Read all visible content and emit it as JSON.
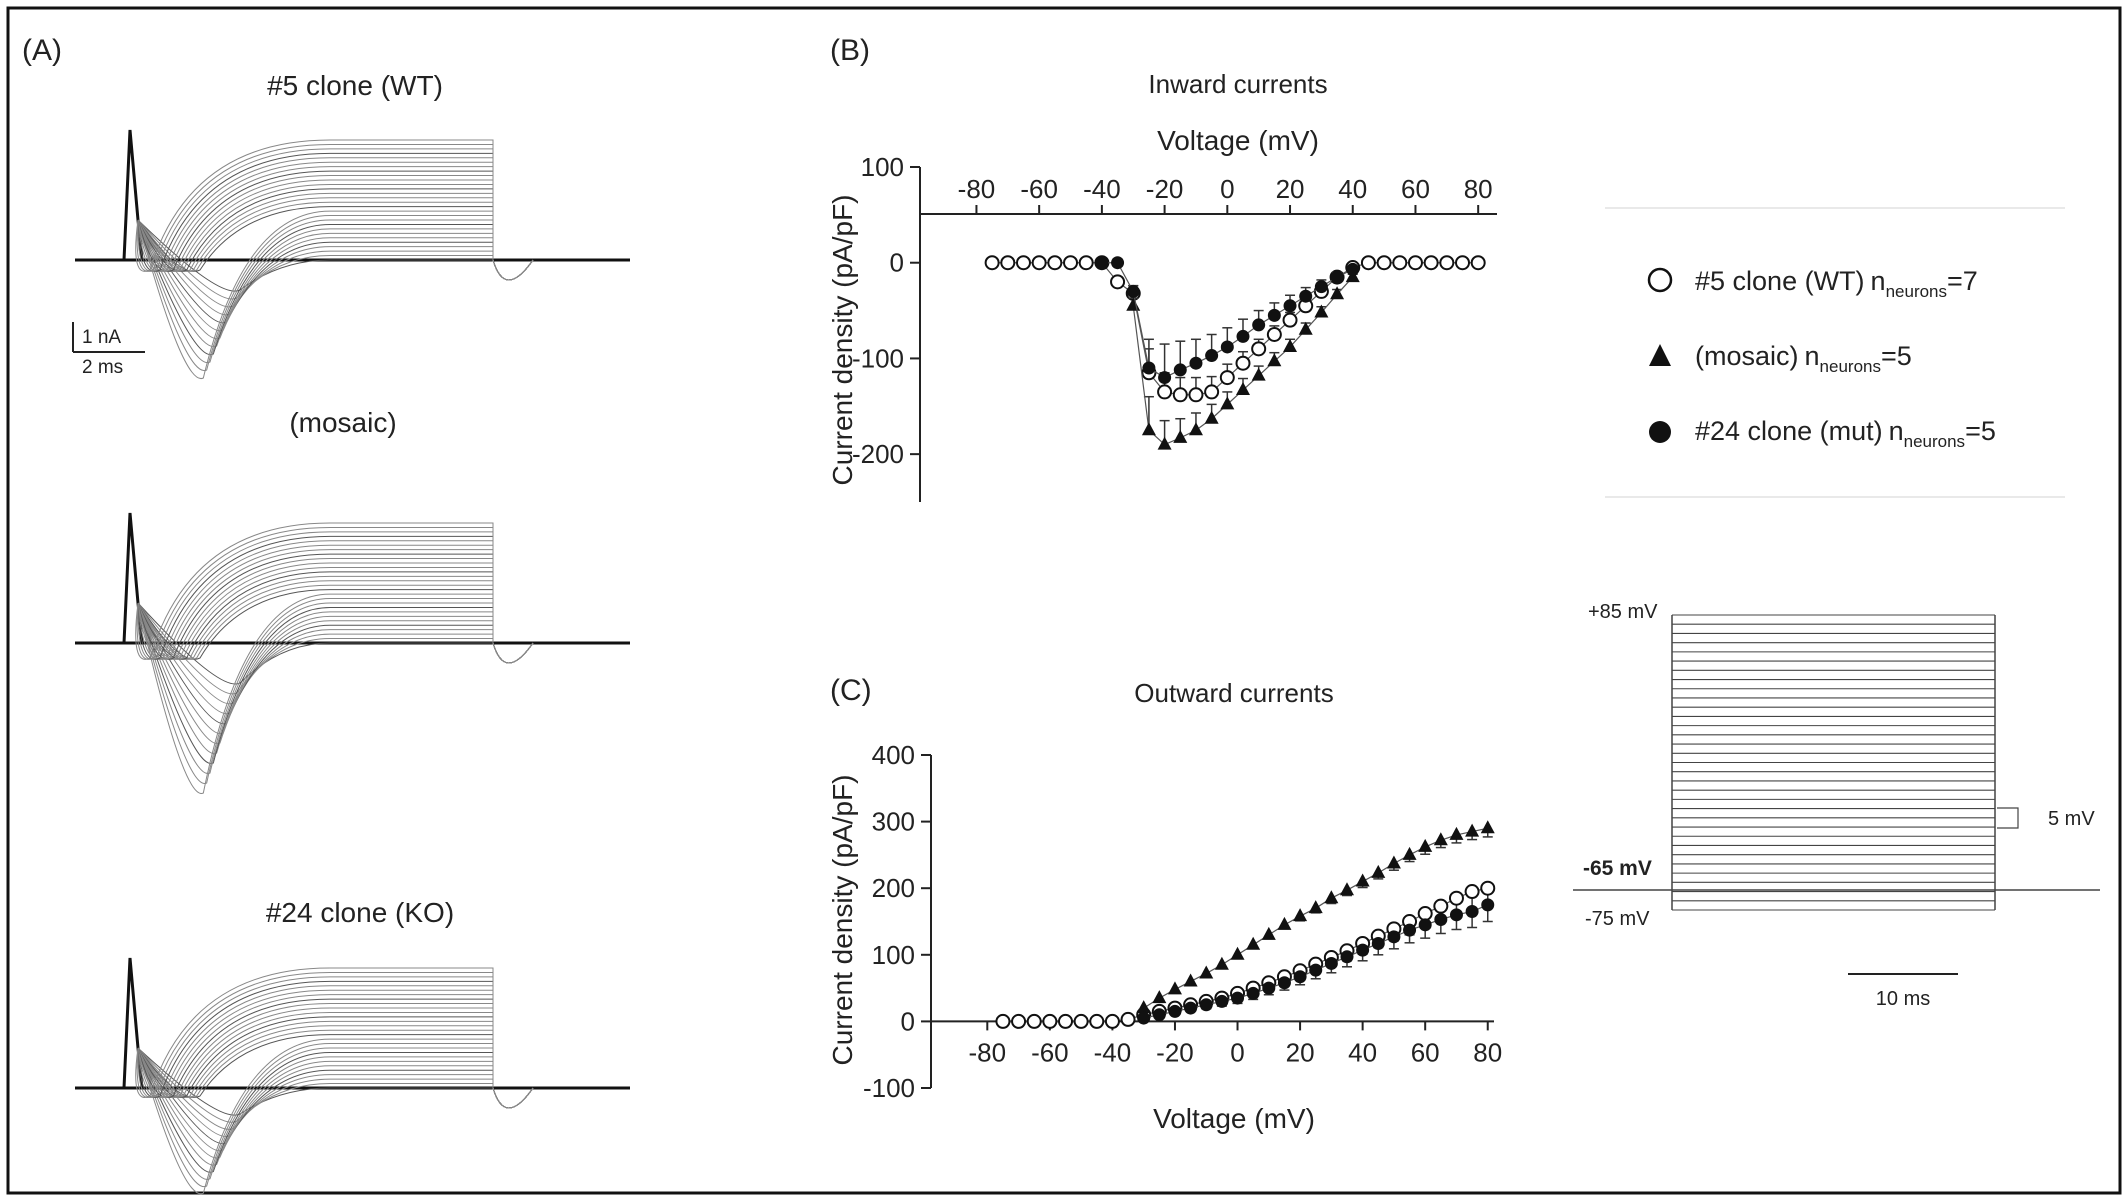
{
  "panels": {
    "A": {
      "label": "(A)",
      "traces": [
        {
          "title": "#5 clone (WT)"
        },
        {
          "title": "(mosaic)"
        },
        {
          "title": "#24 clone (KO)"
        }
      ],
      "scalebar": {
        "current": "1 nA",
        "time": "2 ms"
      }
    },
    "B": {
      "label": "(B)",
      "title": "Inward currents"
    },
    "C": {
      "label": "(C)",
      "title": "Outward currents"
    }
  },
  "legend": {
    "entries": [
      {
        "marker": "open-circle",
        "name": "#5 clone (WT)",
        "n_prefix": "n",
        "n_sub": "neurons",
        "n_value": "=7"
      },
      {
        "marker": "filled-triangle",
        "name": "(mosaic)",
        "n_prefix": "n",
        "n_sub": "neurons",
        "n_value": "=5"
      },
      {
        "marker": "filled-circle",
        "name": "#24 clone (mut)",
        "n_prefix": "n",
        "n_sub": "neurons",
        "n_value": "=5"
      }
    ]
  },
  "protocol": {
    "top_label": "+85 mV",
    "step_label": "5 mV",
    "hold_label": "-65 mV",
    "bottom_label": "-75 mV",
    "time_label": "10 ms"
  },
  "chart_data": [
    {
      "type": "scatter",
      "panel": "B",
      "title": "Inward currents",
      "xlabel": "Voltage (mV)",
      "ylabel": "Current density (pA/pF)",
      "xlim": [
        -98,
        86
      ],
      "ylim": [
        -250,
        100
      ],
      "xticks": [
        -80,
        -60,
        -40,
        -20,
        0,
        20,
        40,
        60,
        80
      ],
      "yticks": [
        100,
        0,
        -100,
        -200
      ],
      "x": [
        -75,
        -70,
        -65,
        -60,
        -55,
        -50,
        -45,
        -40,
        -35,
        -30,
        -25,
        -20,
        -15,
        -10,
        -5,
        0,
        5,
        10,
        15,
        20,
        25,
        30,
        35,
        40,
        45,
        50,
        55,
        60,
        65,
        70,
        75,
        80
      ],
      "series": [
        {
          "name": "#5 clone (WT)",
          "marker": "open-circle",
          "values": [
            0,
            0,
            0,
            0,
            0,
            0,
            0,
            0,
            -20,
            -32,
            -115,
            -135,
            -138,
            -138,
            -135,
            -120,
            -105,
            -90,
            -75,
            -60,
            -45,
            -30,
            -15,
            -5,
            0,
            0,
            0,
            0,
            0,
            0,
            0,
            0
          ],
          "errors": [
            0,
            0,
            0,
            0,
            0,
            0,
            0,
            0,
            5,
            8,
            25,
            20,
            18,
            18,
            16,
            14,
            12,
            10,
            9,
            8,
            6,
            5,
            4,
            2,
            0,
            0,
            0,
            0,
            0,
            0,
            0,
            0
          ]
        },
        {
          "name": "(mosaic)",
          "marker": "filled-triangle",
          "values": [
            null,
            null,
            null,
            null,
            null,
            null,
            null,
            null,
            null,
            -45,
            -175,
            -190,
            -183,
            -175,
            -163,
            -148,
            -133,
            -118,
            -103,
            -88,
            -70,
            -52,
            -33,
            -15,
            null,
            null,
            null,
            null,
            null,
            null,
            null,
            null
          ],
          "errors": [
            null,
            null,
            null,
            null,
            null,
            null,
            null,
            null,
            null,
            8,
            35,
            25,
            20,
            18,
            15,
            13,
            12,
            10,
            9,
            8,
            7,
            6,
            5,
            3,
            null,
            null,
            null,
            null,
            null,
            null,
            null,
            null
          ]
        },
        {
          "name": "#24 clone (mut)",
          "marker": "filled-circle",
          "values": [
            null,
            null,
            null,
            null,
            null,
            null,
            null,
            0,
            0,
            -30,
            -110,
            -120,
            -112,
            -105,
            -97,
            -88,
            -77,
            -65,
            -55,
            -45,
            -35,
            -25,
            -15,
            -7,
            null,
            null,
            null,
            null,
            null,
            null,
            null,
            null
          ],
          "errors": [
            null,
            null,
            null,
            null,
            null,
            null,
            null,
            0,
            0,
            6,
            30,
            35,
            30,
            25,
            22,
            20,
            18,
            15,
            13,
            11,
            9,
            7,
            5,
            3,
            null,
            null,
            null,
            null,
            null,
            null,
            null,
            null
          ]
        }
      ]
    },
    {
      "type": "scatter",
      "panel": "C",
      "title": "Outward currents",
      "xlabel": "Voltage (mV)",
      "ylabel": "Current density (pA/pF)",
      "xlim": [
        -98,
        82
      ],
      "ylim": [
        -100,
        400
      ],
      "xticks": [
        -80,
        -60,
        -40,
        -20,
        0,
        20,
        40,
        60,
        80
      ],
      "yticks": [
        400,
        300,
        200,
        100,
        0,
        -100
      ],
      "x": [
        -75,
        -70,
        -65,
        -60,
        -55,
        -50,
        -45,
        -40,
        -35,
        -30,
        -25,
        -20,
        -15,
        -10,
        -5,
        0,
        5,
        10,
        15,
        20,
        25,
        30,
        35,
        40,
        45,
        50,
        55,
        60,
        65,
        70,
        75,
        80
      ],
      "series": [
        {
          "name": "#5 clone (WT)",
          "marker": "open-circle",
          "values": [
            0,
            0,
            0,
            0,
            0,
            0,
            0,
            0,
            3,
            10,
            15,
            20,
            25,
            30,
            35,
            42,
            50,
            58,
            67,
            76,
            86,
            96,
            106,
            117,
            128,
            139,
            150,
            162,
            173,
            185,
            195,
            200
          ],
          "errors": [
            0,
            0,
            0,
            0,
            0,
            0,
            0,
            0,
            1,
            2,
            3,
            4,
            5,
            6,
            7,
            8,
            9,
            10,
            11,
            12,
            13,
            14,
            15,
            16,
            17,
            18,
            20,
            22,
            24,
            26,
            28,
            30
          ]
        },
        {
          "name": "(mosaic)",
          "marker": "filled-triangle",
          "values": [
            null,
            null,
            null,
            null,
            null,
            null,
            null,
            null,
            null,
            20,
            35,
            48,
            60,
            72,
            85,
            100,
            115,
            130,
            145,
            158,
            170,
            185,
            197,
            210,
            223,
            237,
            250,
            262,
            272,
            280,
            285,
            290
          ],
          "errors": [
            null,
            null,
            null,
            null,
            null,
            null,
            null,
            null,
            null,
            2,
            3,
            3,
            4,
            4,
            5,
            5,
            5,
            6,
            6,
            7,
            7,
            8,
            8,
            9,
            9,
            10,
            10,
            11,
            11,
            12,
            12,
            13
          ]
        },
        {
          "name": "#24 clone (mut)",
          "marker": "filled-circle",
          "values": [
            null,
            null,
            null,
            null,
            null,
            null,
            null,
            null,
            null,
            5,
            10,
            15,
            20,
            25,
            30,
            35,
            42,
            50,
            58,
            67,
            77,
            87,
            97,
            107,
            117,
            127,
            137,
            145,
            153,
            160,
            165,
            175
          ],
          "errors": [
            null,
            null,
            null,
            null,
            null,
            null,
            null,
            null,
            null,
            2,
            3,
            4,
            5,
            6,
            7,
            8,
            9,
            10,
            11,
            12,
            13,
            14,
            15,
            16,
            17,
            18,
            19,
            20,
            21,
            22,
            24,
            25
          ]
        }
      ]
    }
  ]
}
